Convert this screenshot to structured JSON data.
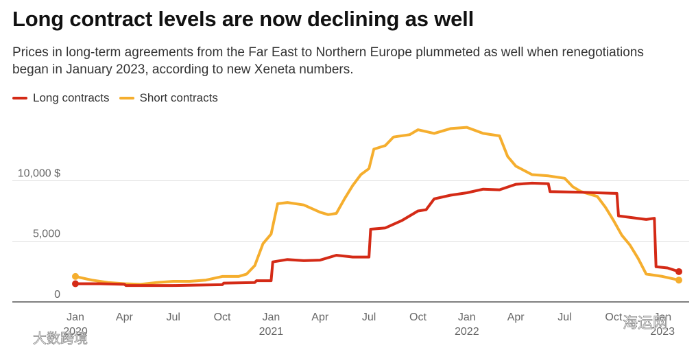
{
  "title": "Long contract levels are now declining as well",
  "subtitle": "Prices in long-term agreements from the Far East to Northern Europe plummeted as well when renegotiations began in January 2023, according to new Xeneta numbers.",
  "watermarks": [
    "大数跨境",
    "海运网"
  ],
  "colors": {
    "long": "#d42a16",
    "short": "#f5ae2e",
    "grid": "#dddddd",
    "axis": "#333333"
  },
  "chart_data": {
    "type": "line",
    "title": "Long contract levels are now declining as well",
    "xlabel": "",
    "ylabel": "",
    "x_range_months": [
      0,
      37
    ],
    "ylim": [
      0,
      15000
    ],
    "y_ticks": [
      {
        "value": 0,
        "label": "0"
      },
      {
        "value": 5000,
        "label": "5,000"
      },
      {
        "value": 10000,
        "label": "10,000 $"
      }
    ],
    "x_ticks": [
      {
        "month": 0,
        "label": "Jan",
        "year": "2020"
      },
      {
        "month": 3,
        "label": "Apr",
        "year": ""
      },
      {
        "month": 6,
        "label": "Jul",
        "year": ""
      },
      {
        "month": 9,
        "label": "Oct",
        "year": ""
      },
      {
        "month": 12,
        "label": "Jan",
        "year": "2021"
      },
      {
        "month": 15,
        "label": "Apr",
        "year": ""
      },
      {
        "month": 18,
        "label": "Jul",
        "year": ""
      },
      {
        "month": 21,
        "label": "Oct",
        "year": ""
      },
      {
        "month": 24,
        "label": "Jan",
        "year": "2022"
      },
      {
        "month": 27,
        "label": "Apr",
        "year": ""
      },
      {
        "month": 30,
        "label": "Jul",
        "year": ""
      },
      {
        "month": 33,
        "label": "Oct",
        "year": ""
      },
      {
        "month": 36,
        "label": "Jan",
        "year": "2023"
      }
    ],
    "series": [
      {
        "name": "Long contracts",
        "color": "#d42a16",
        "points": [
          [
            0,
            1500
          ],
          [
            1.5,
            1500
          ],
          [
            3,
            1450
          ],
          [
            3.1,
            1350
          ],
          [
            6,
            1350
          ],
          [
            9,
            1420
          ],
          [
            9.1,
            1550
          ],
          [
            11,
            1600
          ],
          [
            11.1,
            1750
          ],
          [
            12,
            1750
          ],
          [
            12.1,
            3300
          ],
          [
            13,
            3500
          ],
          [
            14,
            3400
          ],
          [
            15,
            3450
          ],
          [
            16,
            3850
          ],
          [
            17,
            3700
          ],
          [
            18,
            3700
          ],
          [
            18.1,
            6000
          ],
          [
            19,
            6100
          ],
          [
            20,
            6700
          ],
          [
            21,
            7500
          ],
          [
            21.5,
            7600
          ],
          [
            22,
            8500
          ],
          [
            23,
            8800
          ],
          [
            24,
            9000
          ],
          [
            25,
            9300
          ],
          [
            26,
            9250
          ],
          [
            27,
            9700
          ],
          [
            28,
            9800
          ],
          [
            29,
            9750
          ],
          [
            29.1,
            9100
          ],
          [
            31,
            9050
          ],
          [
            32,
            9000
          ],
          [
            33.2,
            8950
          ],
          [
            33.3,
            7100
          ],
          [
            35,
            6800
          ],
          [
            35.5,
            6900
          ],
          [
            35.6,
            2900
          ],
          [
            36.3,
            2800
          ],
          [
            37,
            2500
          ]
        ]
      },
      {
        "name": "Short contracts",
        "color": "#f5ae2e",
        "points": [
          [
            0,
            2100
          ],
          [
            1,
            1800
          ],
          [
            2,
            1600
          ],
          [
            3,
            1500
          ],
          [
            4,
            1450
          ],
          [
            5,
            1600
          ],
          [
            6,
            1700
          ],
          [
            7,
            1700
          ],
          [
            8,
            1800
          ],
          [
            9,
            2100
          ],
          [
            10,
            2100
          ],
          [
            10.5,
            2300
          ],
          [
            11,
            3000
          ],
          [
            11.5,
            4800
          ],
          [
            12,
            5600
          ],
          [
            12.4,
            8100
          ],
          [
            13,
            8200
          ],
          [
            14,
            8000
          ],
          [
            15,
            7400
          ],
          [
            15.5,
            7200
          ],
          [
            16,
            7300
          ],
          [
            16.5,
            8500
          ],
          [
            17,
            9600
          ],
          [
            17.5,
            10500
          ],
          [
            18,
            11000
          ],
          [
            18.3,
            12600
          ],
          [
            19,
            12900
          ],
          [
            19.5,
            13600
          ],
          [
            20.5,
            13800
          ],
          [
            21,
            14200
          ],
          [
            22,
            13900
          ],
          [
            23,
            14300
          ],
          [
            24,
            14400
          ],
          [
            25,
            13900
          ],
          [
            26,
            13700
          ],
          [
            26.5,
            12000
          ],
          [
            27,
            11200
          ],
          [
            28,
            10500
          ],
          [
            29,
            10400
          ],
          [
            30,
            10200
          ],
          [
            30.5,
            9500
          ],
          [
            31,
            9100
          ],
          [
            32,
            8700
          ],
          [
            32.5,
            7800
          ],
          [
            33,
            6700
          ],
          [
            33.5,
            5500
          ],
          [
            34,
            4700
          ],
          [
            34.5,
            3600
          ],
          [
            35,
            2300
          ],
          [
            36,
            2100
          ],
          [
            37,
            1800
          ]
        ]
      }
    ],
    "legend_position": "top-left"
  }
}
